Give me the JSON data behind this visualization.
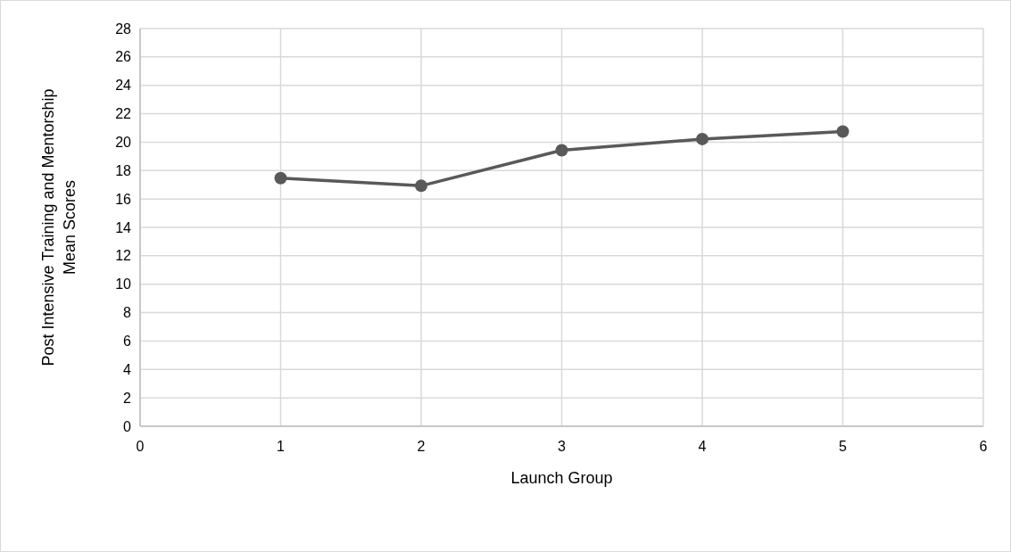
{
  "chart_data": {
    "type": "line",
    "xlabel": "Launch Group",
    "ylabel": "Post Intensive Training and Mentorship Mean Scores",
    "x": [
      1,
      2,
      3,
      4,
      5
    ],
    "series": [
      {
        "color": "#595959",
        "values": [
          17.47,
          16.93,
          19.43,
          20.22,
          20.75
        ]
      }
    ],
    "xlim": [
      0,
      6
    ],
    "xticks": [
      0,
      1,
      2,
      3,
      4,
      5,
      6
    ],
    "ylim": [
      0,
      28
    ],
    "yticks": [
      0,
      2,
      4,
      6,
      8,
      10,
      12,
      14,
      16,
      18,
      20,
      22,
      24,
      26,
      28
    ],
    "grid": true,
    "marker": "circle",
    "line_style": "solid"
  }
}
